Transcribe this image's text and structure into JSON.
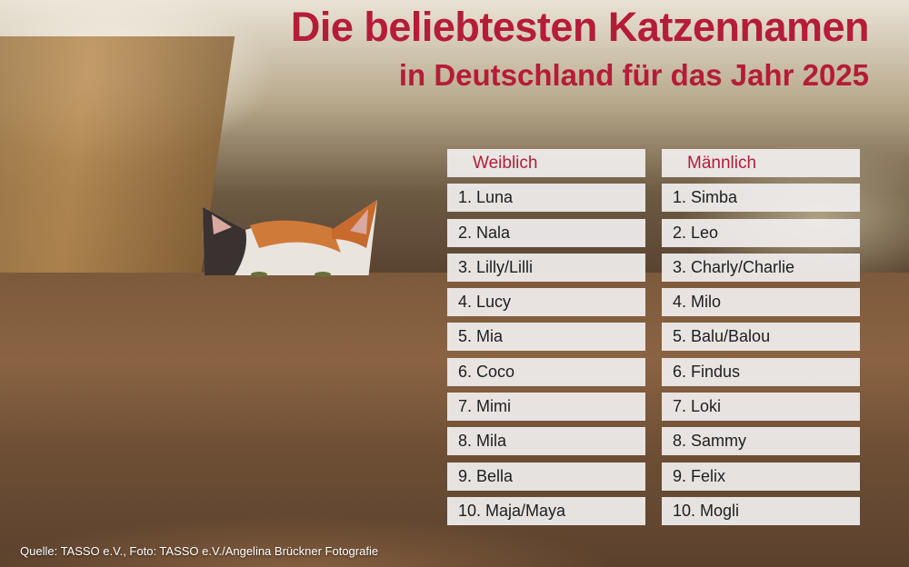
{
  "title": "Die beliebtesten Katzennamen",
  "subtitle": "in Deutschland für das Jahr 2025",
  "female": {
    "header": "Weiblich",
    "names": [
      "1. Luna",
      "2. Nala",
      "3. Lilly/Lilli",
      "4. Lucy",
      "5. Mia",
      "6. Coco",
      "7. Mimi",
      "8. Mila",
      "9. Bella",
      "10. Maja/Maya"
    ]
  },
  "male": {
    "header": "Männlich",
    "names": [
      "1. Simba",
      "2. Leo",
      "3. Charly/Charlie",
      "4. Milo",
      "5. Balu/Balou",
      "6. Findus",
      "7. Loki",
      "8. Sammy",
      "9. Felix",
      "10. Mogli"
    ]
  },
  "source": "Quelle: TASSO e.V., Foto: TASSO e.V./Angelina Brückner Fotografie"
}
